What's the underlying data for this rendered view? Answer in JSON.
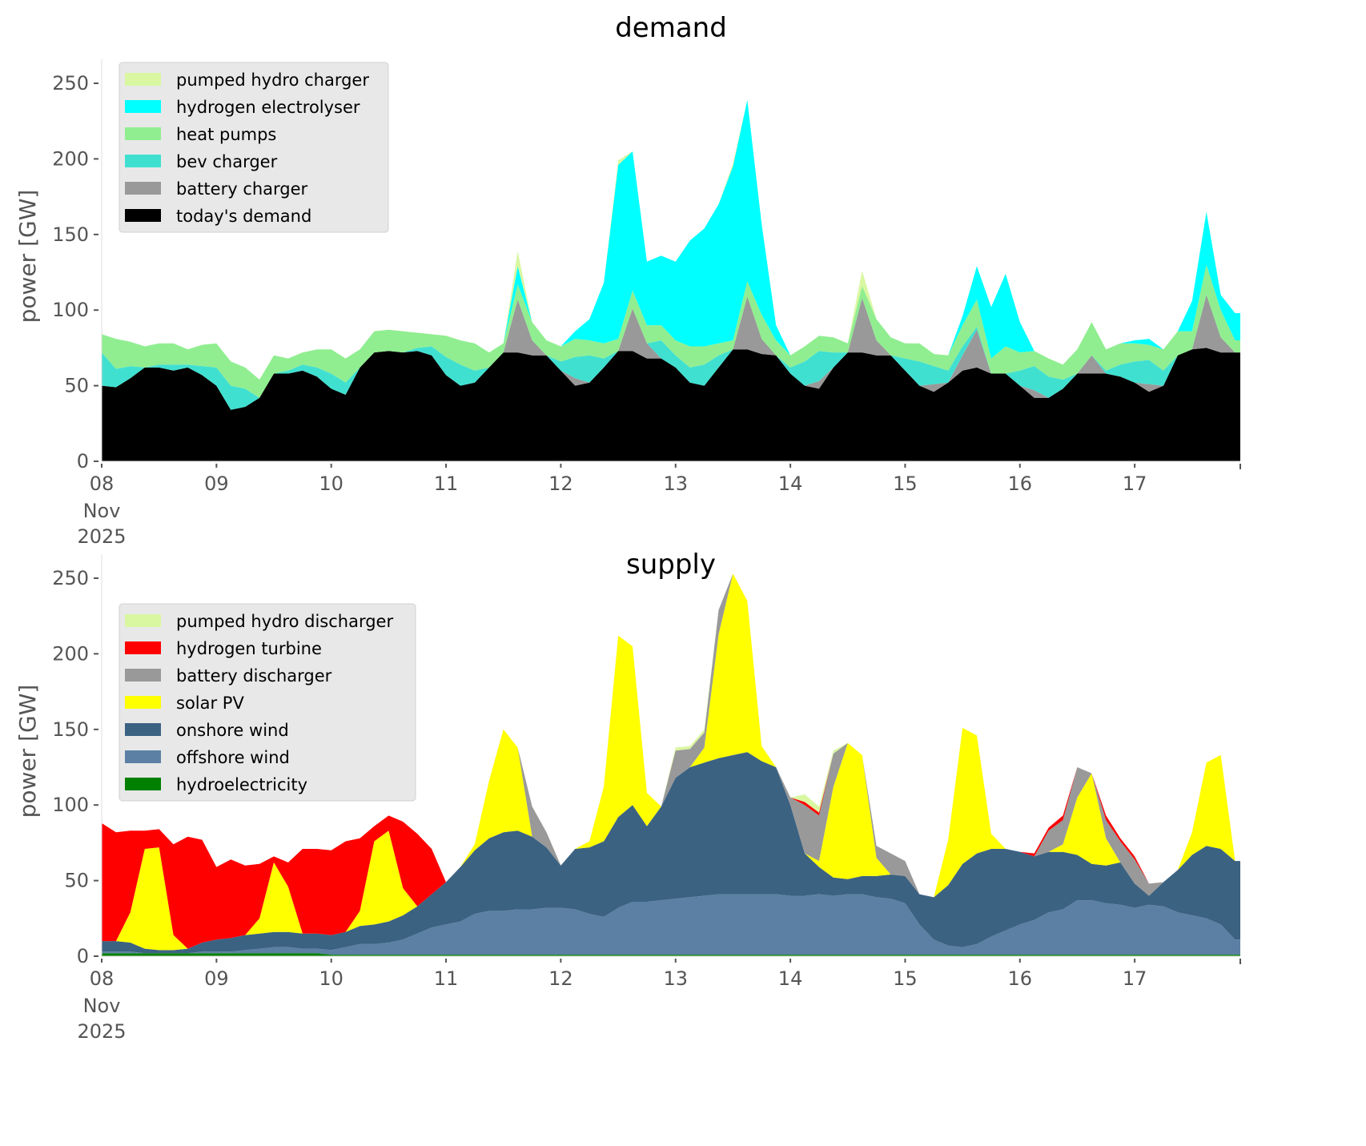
{
  "chart_data": [
    {
      "type": "area",
      "stacked": true,
      "title": "demand",
      "ylabel": "power [GW]",
      "xlabel": "",
      "ylim": [
        0,
        270
      ],
      "yticks": [
        0,
        50,
        100,
        150,
        200,
        250
      ],
      "xtick_labels": [
        {
          "day": "08",
          "month": "Nov",
          "year": "2025"
        },
        {
          "day": "09"
        },
        {
          "day": "10"
        },
        {
          "day": "11"
        },
        {
          "day": "12"
        },
        {
          "day": "13"
        },
        {
          "day": "14"
        },
        {
          "day": "15"
        },
        {
          "day": "16"
        },
        {
          "day": "17"
        }
      ],
      "x_unit": "hours since 2025-11-08 00:00",
      "x_step_hours": 3,
      "grid": false,
      "legend_position": "top-left",
      "series": [
        {
          "name": "today's demand",
          "color": "#000000",
          "values": [
            50,
            49,
            55,
            62,
            62,
            60,
            62,
            57,
            50,
            34,
            36,
            42,
            58,
            58,
            60,
            56,
            48,
            44,
            62,
            72,
            73,
            72,
            73,
            70,
            57,
            50,
            52,
            62,
            72,
            72,
            70,
            70,
            60,
            50,
            52,
            62,
            73,
            73,
            68,
            68,
            62,
            52,
            50,
            62,
            74,
            74,
            71,
            70,
            58,
            50,
            48,
            62,
            72,
            72,
            70,
            70,
            60,
            50,
            46,
            52,
            60,
            62,
            58,
            58,
            50,
            42,
            42,
            48,
            58,
            58,
            58,
            56,
            52,
            46,
            50,
            70,
            74,
            75,
            72,
            72
          ]
        },
        {
          "name": "battery charger",
          "color": "#999999",
          "values": [
            0,
            0,
            0,
            0,
            0,
            0,
            0,
            0,
            0,
            0,
            0,
            0,
            0,
            0,
            0,
            0,
            0,
            0,
            0,
            0,
            0,
            0,
            0,
            0,
            0,
            0,
            0,
            0,
            0,
            35,
            10,
            0,
            0,
            5,
            0,
            0,
            0,
            28,
            10,
            0,
            0,
            0,
            0,
            0,
            0,
            35,
            10,
            0,
            0,
            0,
            5,
            0,
            0,
            36,
            10,
            0,
            0,
            0,
            5,
            0,
            10,
            25,
            0,
            0,
            0,
            5,
            0,
            0,
            0,
            12,
            0,
            0,
            0,
            5,
            0,
            0,
            0,
            35,
            10,
            0
          ]
        },
        {
          "name": "bev charger",
          "color": "#40e0d0",
          "values": [
            22,
            12,
            8,
            0,
            2,
            4,
            2,
            6,
            12,
            16,
            12,
            0,
            0,
            2,
            4,
            6,
            10,
            8,
            0,
            0,
            0,
            0,
            2,
            6,
            12,
            14,
            8,
            0,
            0,
            0,
            0,
            0,
            6,
            14,
            18,
            6,
            0,
            0,
            0,
            12,
            8,
            10,
            14,
            8,
            0,
            0,
            0,
            0,
            4,
            16,
            20,
            10,
            0,
            0,
            0,
            0,
            8,
            16,
            12,
            8,
            6,
            2,
            0,
            0,
            10,
            16,
            14,
            6,
            0,
            0,
            2,
            8,
            14,
            16,
            10,
            0,
            0,
            0,
            0,
            0
          ]
        },
        {
          "name": "heat pumps",
          "color": "#90ee90",
          "values": [
            12,
            20,
            16,
            14,
            14,
            14,
            10,
            14,
            16,
            16,
            14,
            12,
            12,
            8,
            8,
            12,
            16,
            16,
            12,
            14,
            14,
            14,
            10,
            8,
            14,
            16,
            18,
            10,
            6,
            10,
            12,
            10,
            10,
            12,
            10,
            10,
            8,
            12,
            12,
            10,
            10,
            14,
            12,
            8,
            6,
            10,
            16,
            10,
            8,
            10,
            10,
            10,
            6,
            8,
            14,
            12,
            10,
            12,
            8,
            10,
            14,
            18,
            10,
            18,
            12,
            10,
            12,
            10,
            16,
            22,
            14,
            14,
            12,
            10,
            14,
            16,
            12,
            20,
            18,
            8
          ]
        },
        {
          "name": "hydrogen electrolyser",
          "color": "#00ffff",
          "values": [
            0,
            0,
            0,
            0,
            0,
            0,
            0,
            0,
            0,
            0,
            0,
            0,
            0,
            0,
            0,
            0,
            0,
            0,
            0,
            0,
            0,
            0,
            0,
            0,
            0,
            0,
            0,
            0,
            0,
            12,
            0,
            0,
            0,
            5,
            14,
            40,
            115,
            92,
            42,
            46,
            52,
            70,
            78,
            92,
            115,
            120,
            60,
            10,
            0,
            0,
            0,
            0,
            0,
            0,
            0,
            0,
            0,
            0,
            0,
            0,
            6,
            22,
            34,
            48,
            20,
            0,
            0,
            0,
            0,
            0,
            0,
            0,
            2,
            4,
            0,
            0,
            20,
            35,
            10,
            18
          ]
        },
        {
          "name": "pumped hydro charger",
          "color": "#d9f7a1",
          "values": [
            0,
            0,
            0,
            0,
            0,
            0,
            0,
            0,
            0,
            0,
            0,
            0,
            0,
            0,
            0,
            0,
            0,
            0,
            0,
            0,
            0,
            0,
            0,
            0,
            0,
            0,
            0,
            0,
            0,
            10,
            0,
            0,
            0,
            0,
            0,
            0,
            3,
            0,
            0,
            0,
            0,
            0,
            0,
            0,
            2,
            0,
            0,
            0,
            0,
            0,
            0,
            0,
            0,
            10,
            0,
            0,
            0,
            0,
            0,
            0,
            0,
            0,
            0,
            0,
            0,
            0,
            0,
            0,
            0,
            0,
            0,
            0,
            0,
            0,
            0,
            0,
            0,
            0,
            0,
            0
          ]
        }
      ]
    },
    {
      "type": "area",
      "stacked": true,
      "title": "supply",
      "ylabel": "power [GW]",
      "xlabel": "",
      "ylim": [
        0,
        270
      ],
      "yticks": [
        0,
        50,
        100,
        150,
        200,
        250
      ],
      "xtick_labels": [
        {
          "day": "08",
          "month": "Nov",
          "year": "2025"
        },
        {
          "day": "09"
        },
        {
          "day": "10"
        },
        {
          "day": "11"
        },
        {
          "day": "12"
        },
        {
          "day": "13"
        },
        {
          "day": "14"
        },
        {
          "day": "15"
        },
        {
          "day": "16"
        },
        {
          "day": "17"
        }
      ],
      "x_unit": "hours since 2025-11-08 00:00",
      "x_step_hours": 3,
      "grid": false,
      "legend_position": "top-left",
      "series": [
        {
          "name": "hydroelectricity",
          "color": "#008000",
          "values": [
            2,
            2,
            2,
            2,
            2,
            2,
            2,
            2,
            2,
            2,
            2,
            2,
            2,
            2,
            2,
            2,
            1,
            1,
            1,
            1,
            1,
            1,
            1,
            1,
            1,
            1,
            1,
            1,
            1,
            1,
            1,
            1,
            1,
            1,
            1,
            1,
            1,
            1,
            1,
            1,
            1,
            1,
            1,
            1,
            1,
            1,
            1,
            1,
            1,
            1,
            1,
            1,
            1,
            1,
            1,
            1,
            1,
            1,
            1,
            1,
            1,
            1,
            1,
            1,
            1,
            1,
            1,
            1,
            1,
            1,
            1,
            1,
            1,
            1,
            1,
            1,
            1,
            1,
            1,
            1
          ]
        },
        {
          "name": "offshore wind",
          "color": "#5b80a3",
          "values": [
            1,
            1,
            1,
            0,
            0,
            0,
            0,
            1,
            1,
            1,
            2,
            3,
            4,
            4,
            3,
            3,
            3,
            5,
            7,
            7,
            8,
            10,
            14,
            18,
            20,
            22,
            27,
            29,
            29,
            30,
            30,
            31,
            31,
            30,
            27,
            25,
            31,
            35,
            35,
            36,
            37,
            38,
            39,
            40,
            40,
            40,
            40,
            40,
            39,
            39,
            40,
            39,
            40,
            40,
            38,
            37,
            34,
            20,
            10,
            6,
            5,
            7,
            12,
            16,
            20,
            23,
            28,
            30,
            36,
            36,
            34,
            33,
            31,
            33,
            32,
            28,
            26,
            24,
            20,
            10
          ]
        },
        {
          "name": "onshore wind",
          "color": "#3c6282",
          "values": [
            7,
            7,
            6,
            3,
            2,
            2,
            3,
            6,
            8,
            9,
            10,
            10,
            10,
            10,
            10,
            10,
            10,
            10,
            12,
            13,
            14,
            16,
            18,
            22,
            28,
            36,
            42,
            48,
            52,
            52,
            48,
            40,
            28,
            40,
            44,
            50,
            60,
            64,
            50,
            62,
            80,
            86,
            88,
            90,
            92,
            94,
            88,
            84,
            60,
            28,
            18,
            12,
            10,
            12,
            14,
            16,
            18,
            20,
            28,
            40,
            55,
            60,
            58,
            54,
            48,
            42,
            40,
            38,
            30,
            24,
            25,
            28,
            16,
            6,
            16,
            28,
            40,
            48,
            50,
            52
          ]
        },
        {
          "name": "solar PV",
          "color": "#ffff00",
          "values": [
            0,
            0,
            20,
            66,
            68,
            10,
            0,
            0,
            0,
            0,
            0,
            10,
            46,
            30,
            0,
            0,
            0,
            0,
            10,
            55,
            60,
            18,
            0,
            0,
            0,
            0,
            4,
            38,
            68,
            55,
            0,
            0,
            0,
            0,
            4,
            36,
            120,
            105,
            22,
            0,
            0,
            0,
            10,
            82,
            120,
            100,
            10,
            0,
            0,
            0,
            4,
            60,
            90,
            80,
            12,
            0,
            0,
            0,
            0,
            30,
            90,
            78,
            10,
            0,
            0,
            0,
            0,
            5,
            38,
            60,
            18,
            0,
            0,
            0,
            0,
            0,
            15,
            55,
            62,
            0
          ]
        },
        {
          "name": "battery discharger",
          "color": "#999999",
          "values": [
            0,
            0,
            0,
            0,
            0,
            0,
            0,
            0,
            0,
            0,
            0,
            0,
            0,
            0,
            0,
            0,
            0,
            0,
            0,
            0,
            0,
            0,
            0,
            0,
            0,
            0,
            0,
            0,
            0,
            0,
            20,
            10,
            0,
            0,
            0,
            0,
            0,
            0,
            0,
            0,
            18,
            12,
            10,
            16,
            0,
            0,
            0,
            0,
            5,
            32,
            30,
            22,
            0,
            0,
            8,
            14,
            10,
            0,
            0,
            0,
            0,
            0,
            0,
            0,
            0,
            0,
            14,
            16,
            20,
            0,
            12,
            14,
            16,
            8,
            0,
            0,
            0,
            0,
            0,
            0
          ]
        },
        {
          "name": "hydrogen turbine",
          "color": "#ff0000",
          "values": [
            78,
            72,
            54,
            12,
            12,
            60,
            74,
            68,
            48,
            52,
            46,
            36,
            4,
            16,
            56,
            56,
            56,
            60,
            48,
            10,
            10,
            44,
            48,
            30,
            0,
            0,
            0,
            0,
            0,
            0,
            0,
            0,
            0,
            0,
            0,
            0,
            0,
            0,
            0,
            0,
            0,
            0,
            0,
            0,
            0,
            0,
            0,
            0,
            0,
            2,
            2,
            0,
            0,
            0,
            0,
            0,
            0,
            0,
            0,
            0,
            0,
            0,
            0,
            0,
            0,
            2,
            2,
            3,
            0,
            0,
            3,
            2,
            2,
            0,
            0,
            0,
            0,
            0,
            0,
            0
          ]
        },
        {
          "name": "pumped hydro discharger",
          "color": "#d9f7a1",
          "values": [
            0,
            0,
            0,
            0,
            0,
            0,
            0,
            0,
            0,
            0,
            0,
            0,
            0,
            0,
            0,
            0,
            0,
            0,
            0,
            0,
            0,
            0,
            0,
            0,
            0,
            0,
            0,
            0,
            0,
            0,
            0,
            0,
            0,
            0,
            0,
            0,
            0,
            0,
            0,
            0,
            2,
            2,
            2,
            0,
            0,
            0,
            0,
            0,
            0,
            5,
            4,
            2,
            0,
            0,
            0,
            0,
            0,
            0,
            0,
            0,
            0,
            0,
            0,
            0,
            0,
            0,
            0,
            0,
            0,
            0,
            0,
            0,
            0,
            0,
            0,
            0,
            0,
            0,
            0,
            0
          ]
        }
      ]
    }
  ]
}
